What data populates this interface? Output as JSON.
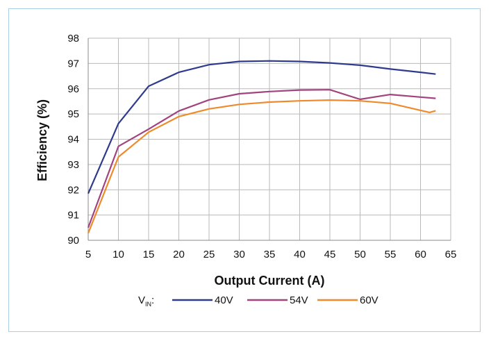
{
  "chart_data": {
    "type": "line",
    "title": "",
    "xlabel": "Output Current (A)",
    "ylabel": "Efficiency (%)",
    "xlim": [
      5,
      65
    ],
    "ylim": [
      90,
      98
    ],
    "xticks": [
      5,
      10,
      15,
      20,
      25,
      30,
      35,
      40,
      45,
      50,
      55,
      60,
      65
    ],
    "yticks": [
      90,
      91,
      92,
      93,
      94,
      95,
      96,
      97,
      98
    ],
    "grid": true,
    "legend": {
      "placement": "bottom",
      "prefix_main": "V",
      "prefix_sub": "IN",
      "prefix_suffix": ":"
    },
    "series": [
      {
        "name": "40V",
        "color": "#2e3a8c",
        "x": [
          5,
          10,
          15,
          20,
          25,
          30,
          35,
          40,
          45,
          50,
          55,
          60,
          62.5
        ],
        "y": [
          91.85,
          94.62,
          96.1,
          96.65,
          96.95,
          97.08,
          97.1,
          97.08,
          97.02,
          96.93,
          96.78,
          96.65,
          96.58
        ]
      },
      {
        "name": "54V",
        "color": "#a0437f",
        "x": [
          5,
          10,
          15,
          20,
          25,
          30,
          35,
          40,
          45,
          50,
          55,
          60,
          62.5
        ],
        "y": [
          90.5,
          93.72,
          94.4,
          95.12,
          95.56,
          95.8,
          95.89,
          95.95,
          95.96,
          95.58,
          95.77,
          95.67,
          95.62
        ]
      },
      {
        "name": "60V",
        "color": "#ef8a2a",
        "x": [
          5,
          10,
          15,
          20,
          25,
          30,
          35,
          40,
          45,
          50,
          55,
          61.5,
          62.5
        ],
        "y": [
          90.28,
          93.3,
          94.28,
          94.9,
          95.2,
          95.38,
          95.47,
          95.52,
          95.55,
          95.52,
          95.42,
          95.06,
          95.13
        ]
      }
    ]
  }
}
